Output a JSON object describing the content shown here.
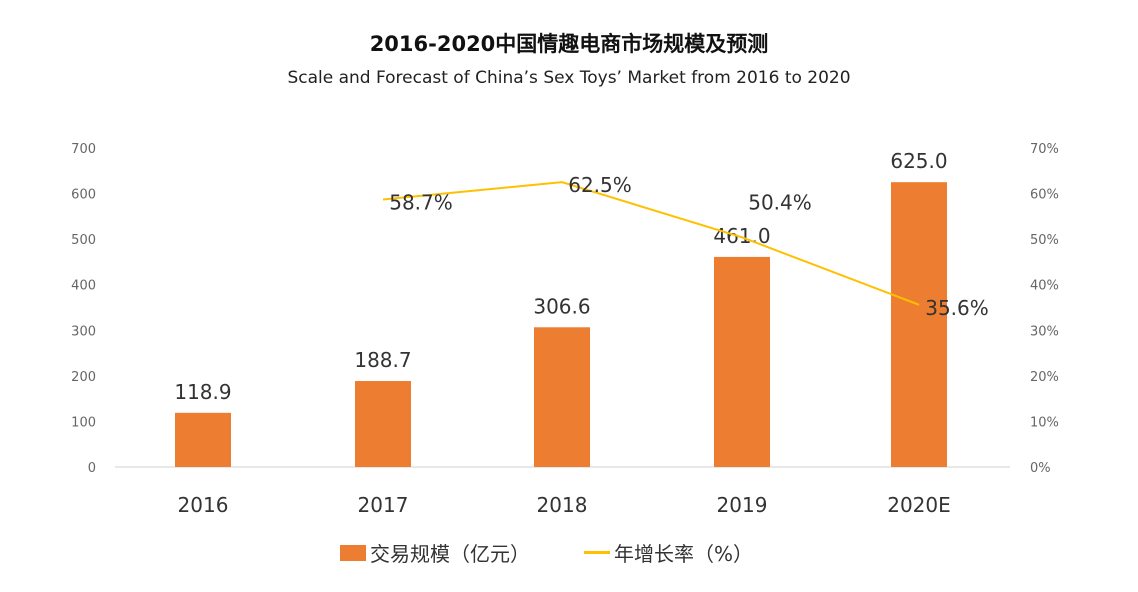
{
  "chart_data": {
    "type": "bar+line",
    "title": "2016-2020中国情趣电商市场规模及预测",
    "subtitle": "Scale and Forecast of China’s Sex Toys’ Market from 2016 to 2020",
    "categories": [
      "2016",
      "2017",
      "2018",
      "2019",
      "2020E"
    ],
    "series": [
      {
        "name": "交易规模（亿元）",
        "type": "bar",
        "axis": "left",
        "values": [
          118.9,
          188.7,
          306.6,
          461.0,
          625.0
        ],
        "labels": [
          "118.9",
          "188.7",
          "306.6",
          "461.0",
          "625.0"
        ],
        "color": "#ED7D31"
      },
      {
        "name": "年增长率（%）",
        "type": "line",
        "axis": "right",
        "values": [
          null,
          58.7,
          62.5,
          50.4,
          35.6
        ],
        "labels": [
          "",
          "58.7%",
          "62.5%",
          "50.4%",
          "35.6%"
        ],
        "color": "#FFC000"
      }
    ],
    "left_axis": {
      "ylim": [
        0,
        700
      ],
      "ticks": [
        "0",
        "100",
        "200",
        "300",
        "400",
        "500",
        "600",
        "700"
      ]
    },
    "right_axis": {
      "ylim": [
        0,
        70
      ],
      "ticks": [
        "0%",
        "10%",
        "20%",
        "30%",
        "40%",
        "50%",
        "60%",
        "70%"
      ]
    },
    "grid": false,
    "legend": "bottom"
  }
}
